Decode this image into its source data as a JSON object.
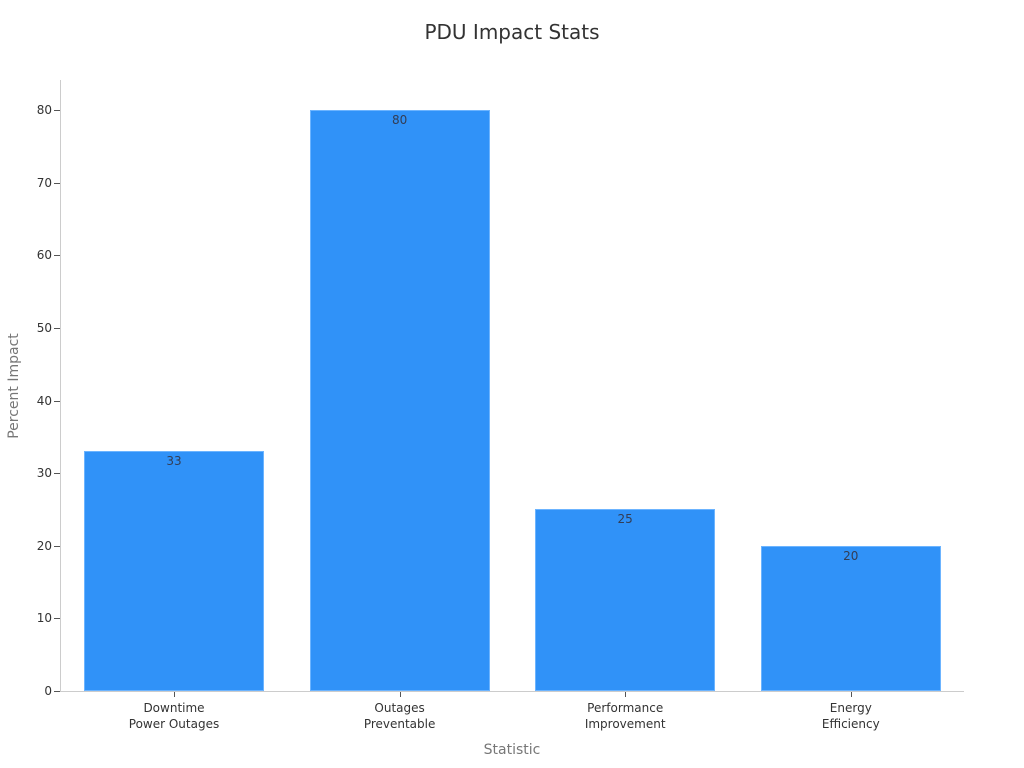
{
  "chart_data": {
    "type": "bar",
    "title": "PDU Impact Stats",
    "xlabel": "Statistic",
    "ylabel": "Percent Impact",
    "categories": [
      "Downtime\nPower Outages",
      "Outages\nPreventable",
      "Performance\nImprovement",
      "Energy\nEfficiency"
    ],
    "category_lines": [
      [
        "Downtime",
        "Power Outages"
      ],
      [
        "Outages",
        "Preventable"
      ],
      [
        "Performance",
        "Improvement"
      ],
      [
        "Energy",
        "Efficiency"
      ]
    ],
    "values": [
      33,
      80,
      25,
      20
    ],
    "value_labels": [
      "33",
      "80",
      "25",
      "20"
    ],
    "ylim": [
      0,
      84
    ],
    "yticks": [
      0,
      10,
      20,
      30,
      40,
      50,
      60,
      70,
      80
    ],
    "ytick_labels": [
      "0",
      "10",
      "20",
      "30",
      "40",
      "50",
      "60",
      "70",
      "80"
    ],
    "grid": false,
    "legend": null,
    "bar_color": "#3092f8"
  }
}
